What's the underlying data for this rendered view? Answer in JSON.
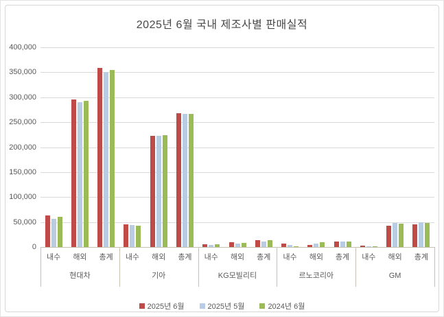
{
  "chart_data": {
    "type": "bar",
    "title": "2025년 6월 국내 제조사별 판매실적",
    "ylim": [
      0,
      400000
    ],
    "ytick_step": 50000,
    "grid": true,
    "legend_position": "bottom",
    "series": [
      {
        "name": "2025년 6월",
        "color": "#BE4B48"
      },
      {
        "name": "2025년 5월",
        "color": "#B8CCE4"
      },
      {
        "name": "2024년 6월",
        "color": "#9BBB59"
      }
    ],
    "category_labels": [
      "내수",
      "해외",
      "총계"
    ],
    "groups": [
      {
        "name": "현대차",
        "rows": [
          {
            "category": "내수",
            "values": [
              63000,
              57000,
              61000
            ]
          },
          {
            "category": "해외",
            "values": [
              296000,
              290000,
              293000
            ]
          },
          {
            "category": "총계",
            "values": [
              359000,
              350000,
              354000
            ]
          }
        ]
      },
      {
        "name": "기아",
        "rows": [
          {
            "category": "내수",
            "values": [
              46000,
              44000,
              43000
            ]
          },
          {
            "category": "해외",
            "values": [
              222000,
              223000,
              224000
            ]
          },
          {
            "category": "총계",
            "values": [
              268000,
              267000,
              267000
            ]
          }
        ]
      },
      {
        "name": "KG모빌리티",
        "rows": [
          {
            "category": "내수",
            "values": [
              5000,
              3500,
              6000
            ]
          },
          {
            "category": "해외",
            "values": [
              9000,
              7000,
              8000
            ]
          },
          {
            "category": "총계",
            "values": [
              14000,
              10500,
              14000
            ]
          }
        ]
      },
      {
        "name": "르노코리아",
        "rows": [
          {
            "category": "내수",
            "values": [
              7000,
              4200,
              1800
            ]
          },
          {
            "category": "해외",
            "values": [
              3600,
              6800,
              9000
            ]
          },
          {
            "category": "총계",
            "values": [
              10600,
              11000,
              10800
            ]
          }
        ]
      },
      {
        "name": "GM",
        "rows": [
          {
            "category": "내수",
            "values": [
              2500,
              1500,
              2000
            ]
          },
          {
            "category": "해외",
            "values": [
              43000,
              48000,
              46500
            ]
          },
          {
            "category": "총계",
            "values": [
              45500,
              49500,
              48500
            ]
          }
        ]
      }
    ],
    "colors": {
      "grid": "#D9D9D9",
      "axis_line": "#C7BFB0",
      "text": "#595959",
      "title": "#484848",
      "border": "#D7D7D7"
    }
  }
}
